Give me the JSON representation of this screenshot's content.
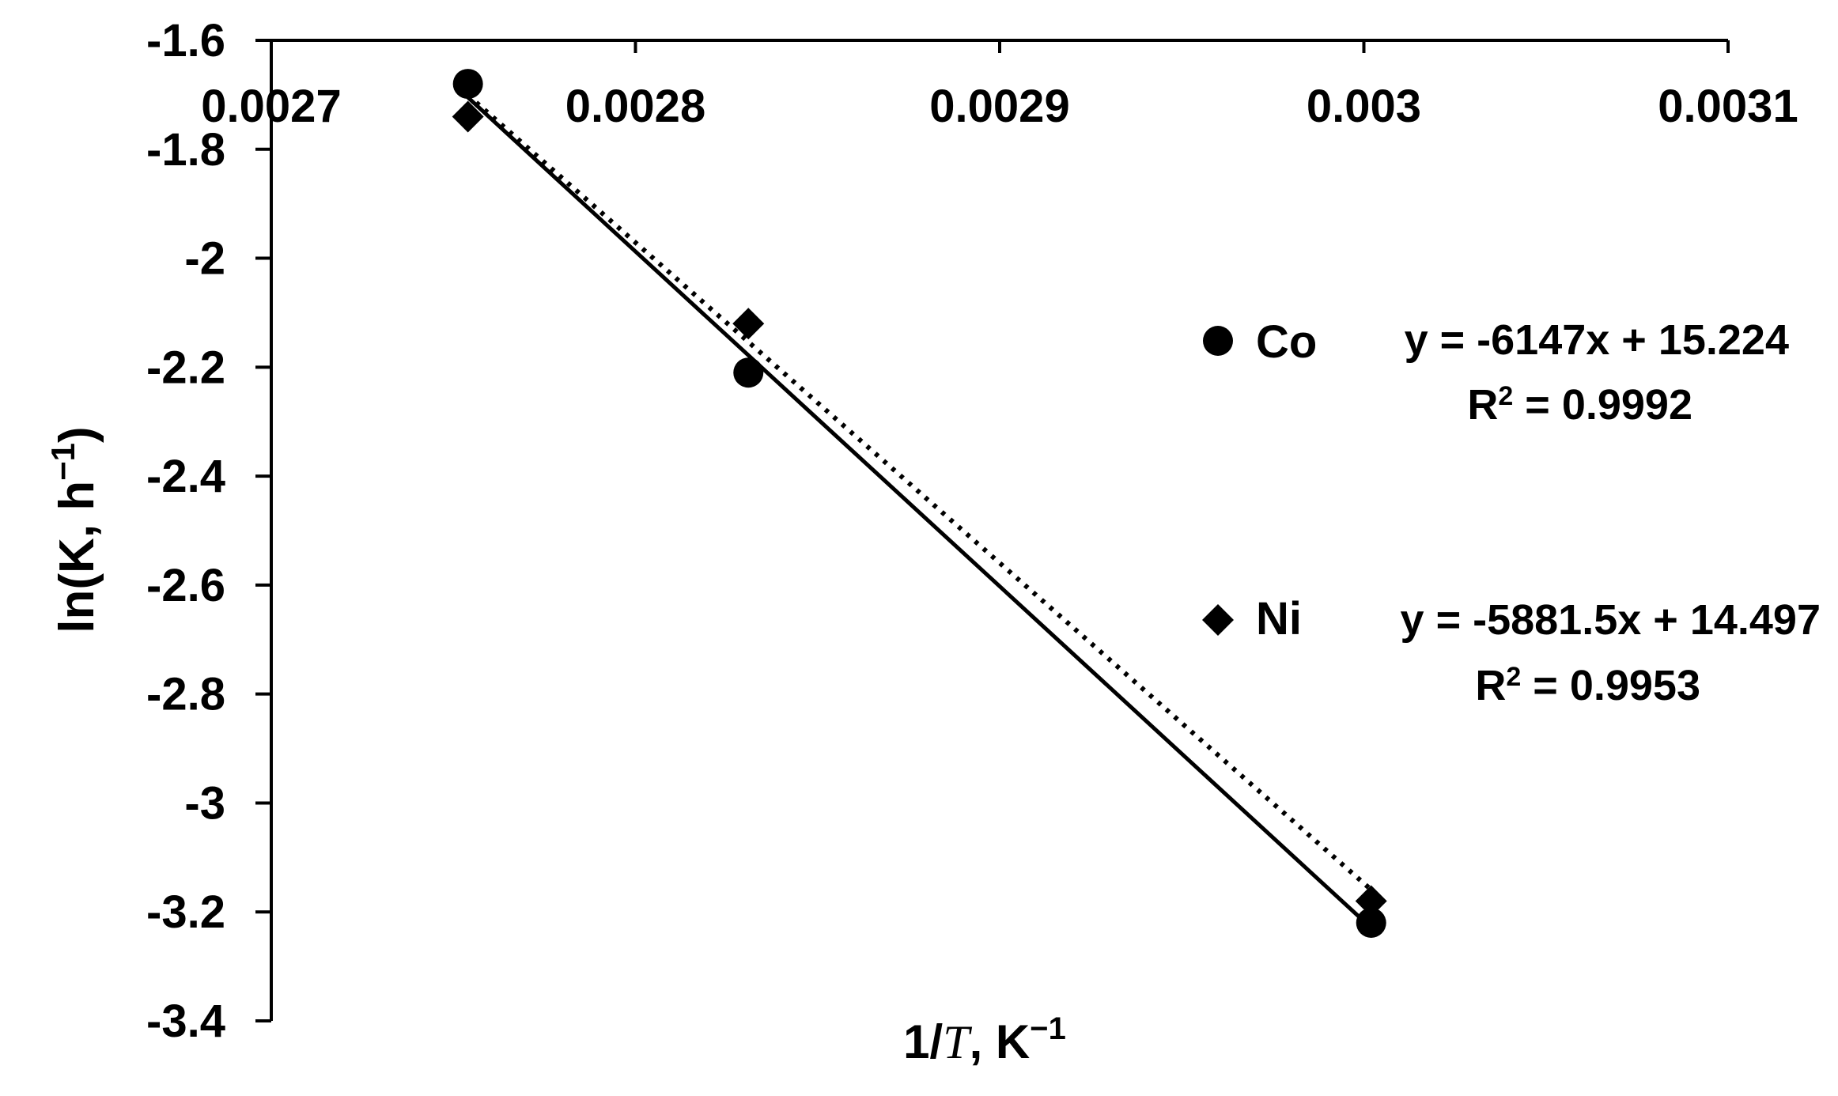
{
  "chart_data": {
    "type": "scatter",
    "xlabel_parts": [
      "1/",
      "T",
      ", K",
      "−1"
    ],
    "ylabel_parts": [
      "ln(K, h",
      "−1",
      ")"
    ],
    "xlim": [
      0.0027,
      0.0031
    ],
    "ylim": [
      -3.4,
      -1.6
    ],
    "x_ticks": [
      0.0027,
      0.0028,
      0.0029,
      0.003,
      0.0031
    ],
    "x_tick_labels": [
      "0.0027",
      "0.0028",
      "0.0029",
      "0.003",
      "0.0031"
    ],
    "y_ticks": [
      -1.6,
      -1.8,
      -2,
      -2.2,
      -2.4,
      -2.6,
      -2.8,
      -3,
      -3.2,
      -3.4
    ],
    "y_tick_labels": [
      "-1.6",
      "-1.8",
      "-2",
      "-2.2",
      "-2.4",
      "-2.6",
      "-2.8",
      "-3",
      "-3.2",
      "-3.4"
    ],
    "x_axis_position": "top",
    "grid": false,
    "legend_placement": "right",
    "series": [
      {
        "name": "Co",
        "marker": "circle",
        "line_style": "solid",
        "x": [
          0.002754,
          0.002831,
          0.003002
        ],
        "y": [
          -1.68,
          -2.21,
          -3.22
        ],
        "equation": "y = -6147x + 15.224",
        "r2_label": "R",
        "r2_value": " = 0.9992",
        "slope": -6147,
        "intercept": 15.224
      },
      {
        "name": "Ni",
        "marker": "diamond",
        "line_style": "dotted",
        "x": [
          0.002754,
          0.002831,
          0.003002
        ],
        "y": [
          -1.74,
          -2.12,
          -3.18
        ],
        "equation": "y = -5881.5x + 14.497",
        "r2_label": "R",
        "r2_value": " = 0.9953",
        "slope": -5881.5,
        "intercept": 14.497
      }
    ],
    "color": "#000000"
  }
}
